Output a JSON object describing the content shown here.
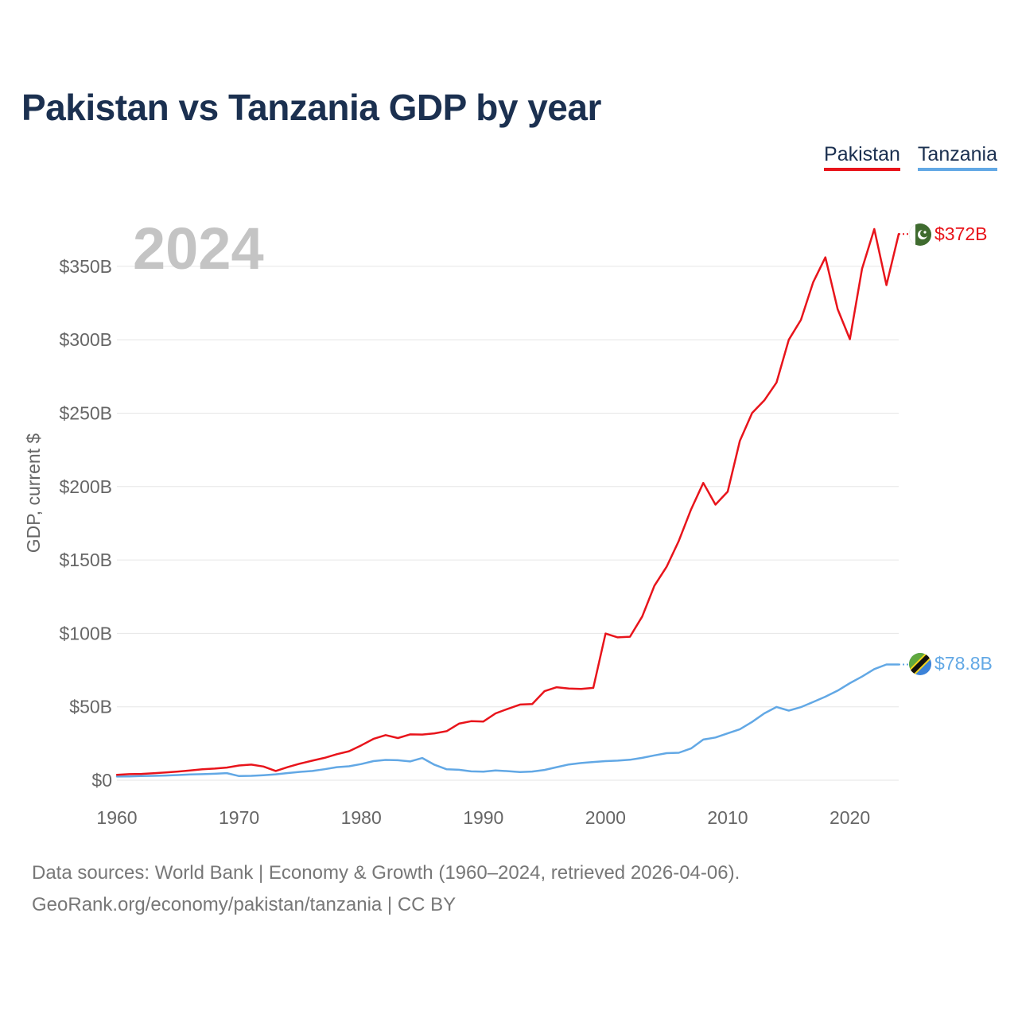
{
  "chart_data": {
    "type": "line",
    "title": "Pakistan vs Tanzania GDP by year",
    "ylabel": "GDP, current $",
    "xlabel": "",
    "year_label": "2024",
    "ylim": [
      0,
      380
    ],
    "xlim": [
      1960,
      2024
    ],
    "y_ticks": [
      0,
      50,
      100,
      150,
      200,
      250,
      300,
      350
    ],
    "y_tick_labels": [
      "$0",
      "$50B",
      "$100B",
      "$150B",
      "$200B",
      "$250B",
      "$300B",
      "$350B"
    ],
    "x_ticks": [
      1960,
      1970,
      1980,
      1990,
      2000,
      2010,
      2020
    ],
    "x_tick_labels": [
      "1960",
      "1970",
      "1980",
      "1990",
      "2000",
      "2010",
      "2020"
    ],
    "grid": true,
    "legend": "top-right",
    "x": [
      1960,
      1961,
      1962,
      1963,
      1964,
      1965,
      1966,
      1967,
      1968,
      1969,
      1970,
      1971,
      1972,
      1973,
      1974,
      1975,
      1976,
      1977,
      1978,
      1979,
      1980,
      1981,
      1982,
      1983,
      1984,
      1985,
      1986,
      1987,
      1988,
      1989,
      1990,
      1991,
      1992,
      1993,
      1994,
      1995,
      1996,
      1997,
      1998,
      1999,
      2000,
      2001,
      2002,
      2003,
      2004,
      2005,
      2006,
      2007,
      2008,
      2009,
      2010,
      2011,
      2012,
      2013,
      2014,
      2015,
      2016,
      2017,
      2018,
      2019,
      2020,
      2021,
      2022,
      2023,
      2024
    ],
    "series": [
      {
        "name": "Pakistan",
        "color": "#e8141b",
        "end_label": "$372B",
        "values": [
          3.7,
          4.1,
          4.3,
          4.7,
          5.3,
          5.9,
          6.6,
          7.4,
          7.9,
          8.6,
          10.0,
          10.6,
          9.3,
          6.3,
          9.0,
          11.3,
          13.3,
          15.2,
          17.7,
          19.7,
          23.7,
          28.1,
          30.7,
          28.7,
          31.2,
          31.1,
          31.9,
          33.4,
          38.5,
          40.2,
          40.0,
          45.5,
          48.6,
          51.5,
          51.9,
          60.6,
          63.3,
          62.4,
          62.2,
          62.9,
          99.9,
          97.3,
          97.7,
          111.5,
          132.4,
          145.4,
          163.0,
          184.4,
          202.5,
          187.7,
          196.6,
          231.2,
          250.1,
          258.7,
          270.9,
          300.0,
          313.6,
          339.2,
          356.1,
          320.9,
          300.4,
          348.3,
          375.4,
          337.2,
          372.0
        ]
      },
      {
        "name": "Tanzania",
        "color": "#62a8e5",
        "end_label": "$78.8B",
        "values": [
          2.5,
          2.6,
          2.8,
          3.0,
          3.2,
          3.5,
          3.9,
          4.1,
          4.4,
          4.8,
          2.8,
          3.0,
          3.4,
          4.0,
          4.9,
          5.7,
          6.3,
          7.5,
          8.9,
          9.5,
          11.0,
          13.0,
          13.8,
          13.6,
          12.8,
          15.1,
          10.5,
          7.4,
          7.1,
          6.0,
          5.8,
          6.6,
          6.2,
          5.6,
          5.9,
          7.0,
          8.9,
          10.7,
          11.7,
          12.4,
          13.0,
          13.3,
          13.9,
          15.2,
          16.9,
          18.4,
          18.7,
          21.6,
          27.7,
          29.1,
          31.9,
          34.7,
          39.7,
          45.5,
          49.9,
          47.4,
          49.8,
          53.3,
          56.9,
          61.0,
          66.1,
          70.6,
          75.7,
          78.8,
          78.8
        ]
      }
    ]
  },
  "sources": {
    "line1": "Data sources: World Bank | Economy & Growth (1960–2024, retrieved 2026-04-06).",
    "line2": "GeoRank.org/economy/pakistan/tanzania | CC BY"
  }
}
